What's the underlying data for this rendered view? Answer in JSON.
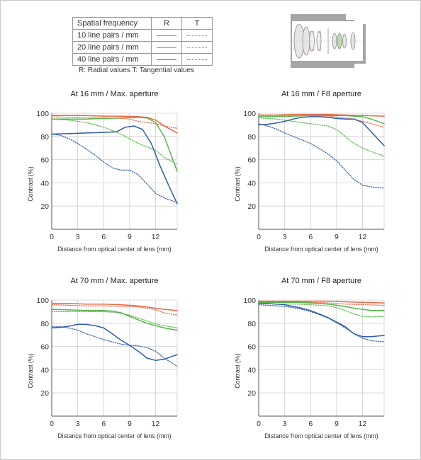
{
  "legend": {
    "header": {
      "freq": "Spatial frequency",
      "radial": "R",
      "tangential": "T"
    },
    "rows": [
      {
        "label": "10 line pairs / mm",
        "color": "#ee6644"
      },
      {
        "label": "20 line pairs / mm",
        "color": "#55b548"
      },
      {
        "label": "40 line pairs / mm",
        "color": "#2f5da8"
      }
    ],
    "note": "R: Radial values  T: Tangential values"
  },
  "lens_diagram": {
    "icon": "lens-cross-section-icon",
    "body_color": "#a6a6a6",
    "element_color": "#e6e6e6"
  },
  "chart_data": [
    {
      "type": "line",
      "title": "At 16 mm / Max. aperture",
      "xlabel": "Distance from optical center of lens (mm)",
      "ylabel": "Contrast (%)",
      "xlim": [
        0,
        14.5
      ],
      "ylim": [
        0,
        100
      ],
      "xticks": [
        0,
        3,
        6,
        9,
        12
      ],
      "yticks": [
        20,
        40,
        60,
        80,
        100
      ],
      "grid": true,
      "series": [
        {
          "color": "#ee6644",
          "style": "solid",
          "x": [
            0,
            2,
            4,
            6,
            8,
            10,
            11,
            12,
            13,
            14.5
          ],
          "y": [
            98,
            98,
            98,
            97.5,
            97.5,
            97,
            96.5,
            94,
            89,
            83
          ]
        },
        {
          "color": "#ee6644",
          "style": "dotted",
          "x": [
            0,
            2,
            4,
            6,
            8,
            9,
            10,
            11,
            12,
            13,
            14.5
          ],
          "y": [
            97,
            96.5,
            96,
            96,
            95.5,
            95,
            93,
            92,
            91,
            89,
            87
          ]
        },
        {
          "color": "#55b548",
          "style": "solid",
          "x": [
            0,
            2,
            4,
            6,
            8,
            10,
            11,
            12,
            13,
            14.5
          ],
          "y": [
            95,
            95,
            95,
            95.5,
            96,
            96.5,
            96,
            92,
            80,
            50
          ]
        },
        {
          "color": "#55b548",
          "style": "dotted",
          "x": [
            0,
            2,
            4,
            6,
            8,
            9,
            10,
            11,
            12,
            13,
            14.5
          ],
          "y": [
            95,
            94,
            92,
            88,
            82,
            78,
            74,
            71,
            68,
            62,
            56
          ]
        },
        {
          "color": "#2f5da8",
          "style": "solid",
          "x": [
            0,
            2,
            4,
            6,
            7.5,
            8.5,
            9.5,
            10.5,
            11.5,
            12.5,
            13.5,
            14.5
          ],
          "y": [
            82,
            82.5,
            83,
            83.5,
            84,
            88,
            89,
            86,
            74,
            55,
            38,
            22
          ]
        },
        {
          "color": "#2f5da8",
          "style": "dotted",
          "x": [
            0,
            1,
            2,
            3,
            4,
            5,
            6,
            7,
            8,
            9,
            10,
            11,
            12,
            13,
            14.5
          ],
          "y": [
            82,
            81,
            78,
            74,
            69,
            64,
            58,
            53,
            51,
            51,
            47,
            39,
            31,
            27,
            23
          ]
        }
      ]
    },
    {
      "type": "line",
      "title": "At 16 mm / F8 aperture",
      "xlabel": "Distance from optical center of lens (mm)",
      "ylabel": "Contrast (%)",
      "xlim": [
        0,
        14.5
      ],
      "ylim": [
        0,
        100
      ],
      "xticks": [
        0,
        3,
        6,
        9,
        12
      ],
      "yticks": [
        20,
        40,
        60,
        80,
        100
      ],
      "grid": true,
      "series": [
        {
          "color": "#ee6644",
          "style": "solid",
          "x": [
            0,
            2,
            4,
            6,
            8,
            10,
            12,
            14.5
          ],
          "y": [
            98.5,
            98.5,
            99,
            99,
            99,
            98.5,
            98,
            97.5
          ]
        },
        {
          "color": "#ee6644",
          "style": "dotted",
          "x": [
            0,
            2,
            4,
            6,
            8,
            10,
            11,
            12,
            13,
            14.5
          ],
          "y": [
            98,
            98,
            98,
            98,
            97.5,
            96,
            95,
            93,
            91,
            88
          ]
        },
        {
          "color": "#55b548",
          "style": "solid",
          "x": [
            0,
            2,
            4,
            6,
            8,
            10,
            11,
            12,
            13,
            14.5
          ],
          "y": [
            97,
            97,
            97.5,
            98,
            98,
            98,
            97.5,
            97,
            95,
            91
          ]
        },
        {
          "color": "#55b548",
          "style": "dotted",
          "x": [
            0,
            2,
            4,
            6,
            7,
            8,
            9,
            10,
            11,
            12,
            13,
            14.5
          ],
          "y": [
            96,
            95,
            93,
            91,
            90,
            89,
            86,
            80,
            74,
            70,
            67,
            63
          ]
        },
        {
          "color": "#2f5da8",
          "style": "solid",
          "x": [
            0,
            1,
            2,
            3,
            4,
            5,
            6,
            7,
            8,
            9,
            10,
            11,
            12,
            13,
            14.5
          ],
          "y": [
            90,
            90.5,
            91.5,
            93,
            95,
            96.5,
            97,
            97,
            96.5,
            95.5,
            95,
            95,
            92,
            84,
            72
          ]
        },
        {
          "color": "#2f5da8",
          "style": "dotted",
          "x": [
            0,
            1,
            2,
            3,
            4,
            5,
            6,
            7,
            8,
            9,
            10,
            11,
            12,
            13,
            14.5
          ],
          "y": [
            91,
            89,
            86.5,
            83,
            80,
            77,
            74,
            69.5,
            65,
            59,
            51,
            43,
            38,
            36.5,
            35.5
          ]
        }
      ]
    },
    {
      "type": "line",
      "title": "At 70 mm / Max. aperture",
      "xlabel": "Distance from optical center of lens (mm)",
      "ylabel": "Contrast (%)",
      "xlim": [
        0,
        14.5
      ],
      "ylim": [
        0,
        100
      ],
      "xticks": [
        0,
        3,
        6,
        9,
        12
      ],
      "yticks": [
        20,
        40,
        60,
        80,
        100
      ],
      "grid": true,
      "series": [
        {
          "color": "#ee6644",
          "style": "solid",
          "x": [
            0,
            2,
            4,
            6,
            8,
            10,
            12,
            13,
            14.5
          ],
          "y": [
            97,
            97,
            96.5,
            96.5,
            96,
            95,
            93,
            92,
            91
          ]
        },
        {
          "color": "#ee6644",
          "style": "dotted",
          "x": [
            0,
            2,
            4,
            6,
            8,
            10,
            11,
            12,
            13,
            14.5
          ],
          "y": [
            96,
            95.5,
            95,
            95,
            94.5,
            94,
            93,
            91.5,
            89,
            87
          ]
        },
        {
          "color": "#55b548",
          "style": "solid",
          "x": [
            0,
            2,
            4,
            6,
            7,
            8,
            9,
            10,
            11,
            12,
            13,
            14.5
          ],
          "y": [
            92,
            91.5,
            91,
            91,
            90.5,
            89,
            86,
            83,
            80,
            78,
            76,
            74
          ]
        },
        {
          "color": "#55b548",
          "style": "dotted",
          "x": [
            0,
            2,
            4,
            6,
            7,
            8,
            9,
            10,
            11,
            12,
            13,
            14.5
          ],
          "y": [
            90,
            90,
            90,
            90,
            89.5,
            88.5,
            87,
            84.5,
            82,
            79.5,
            78,
            76
          ]
        },
        {
          "color": "#2f5da8",
          "style": "solid",
          "x": [
            0,
            1,
            2,
            3,
            4,
            5,
            6,
            7,
            8,
            9,
            10,
            11,
            12,
            13,
            14.5
          ],
          "y": [
            76,
            76.5,
            77.5,
            79,
            79,
            78,
            76,
            71,
            65.5,
            61,
            56,
            50,
            48,
            49,
            53
          ]
        },
        {
          "color": "#2f5da8",
          "style": "dotted",
          "x": [
            0,
            1,
            2,
            3,
            4,
            5,
            6,
            7,
            8,
            9,
            10,
            11,
            12,
            13,
            14.5
          ],
          "y": [
            77,
            77,
            76,
            74,
            71,
            68.5,
            66,
            64,
            62,
            61,
            60.5,
            59,
            56,
            50,
            43
          ]
        }
      ]
    },
    {
      "type": "line",
      "title": "At 70 mm / F8 aperture",
      "xlabel": "Distance from optical center of lens (mm)",
      "ylabel": "Contrast (%)",
      "xlim": [
        0,
        14.5
      ],
      "ylim": [
        0,
        100
      ],
      "xticks": [
        0,
        3,
        6,
        9,
        12
      ],
      "yticks": [
        20,
        40,
        60,
        80,
        100
      ],
      "grid": true,
      "series": [
        {
          "color": "#ee6644",
          "style": "solid",
          "x": [
            0,
            2,
            4,
            6,
            8,
            10,
            12,
            14.5
          ],
          "y": [
            99,
            99,
            99,
            99,
            99,
            98.5,
            98,
            97.5
          ]
        },
        {
          "color": "#ee6644",
          "style": "dotted",
          "x": [
            0,
            2,
            4,
            6,
            8,
            10,
            12,
            14.5
          ],
          "y": [
            98.5,
            98.5,
            98.5,
            98,
            97.5,
            96.5,
            96,
            95.5
          ]
        },
        {
          "color": "#55b548",
          "style": "solid",
          "x": [
            0,
            2,
            4,
            6,
            8,
            10,
            11,
            12,
            13,
            14.5
          ],
          "y": [
            98,
            98,
            98,
            97.5,
            96.5,
            94.5,
            93,
            92,
            91,
            91
          ]
        },
        {
          "color": "#55b548",
          "style": "dotted",
          "x": [
            0,
            2,
            4,
            6,
            8,
            9,
            10,
            11,
            12,
            13,
            14.5
          ],
          "y": [
            97,
            96.5,
            96.5,
            96,
            95,
            93.5,
            91,
            88,
            86,
            85.5,
            86
          ]
        },
        {
          "color": "#2f5da8",
          "style": "solid",
          "x": [
            0,
            1,
            2,
            3,
            4,
            5,
            6,
            7,
            8,
            9,
            10,
            11,
            12,
            13,
            14.5
          ],
          "y": [
            97,
            97,
            96.5,
            96,
            94.5,
            93,
            91,
            88,
            85,
            81,
            77,
            71,
            68.5,
            68.5,
            69.5
          ]
        },
        {
          "color": "#2f5da8",
          "style": "dotted",
          "x": [
            0,
            1,
            2,
            3,
            4,
            5,
            6,
            7,
            8,
            9,
            10,
            11,
            12,
            13,
            14.5
          ],
          "y": [
            96,
            95.5,
            95,
            94.5,
            93.5,
            92,
            90,
            87.5,
            84.5,
            80.5,
            76,
            71,
            67,
            65,
            64
          ]
        }
      ]
    }
  ]
}
